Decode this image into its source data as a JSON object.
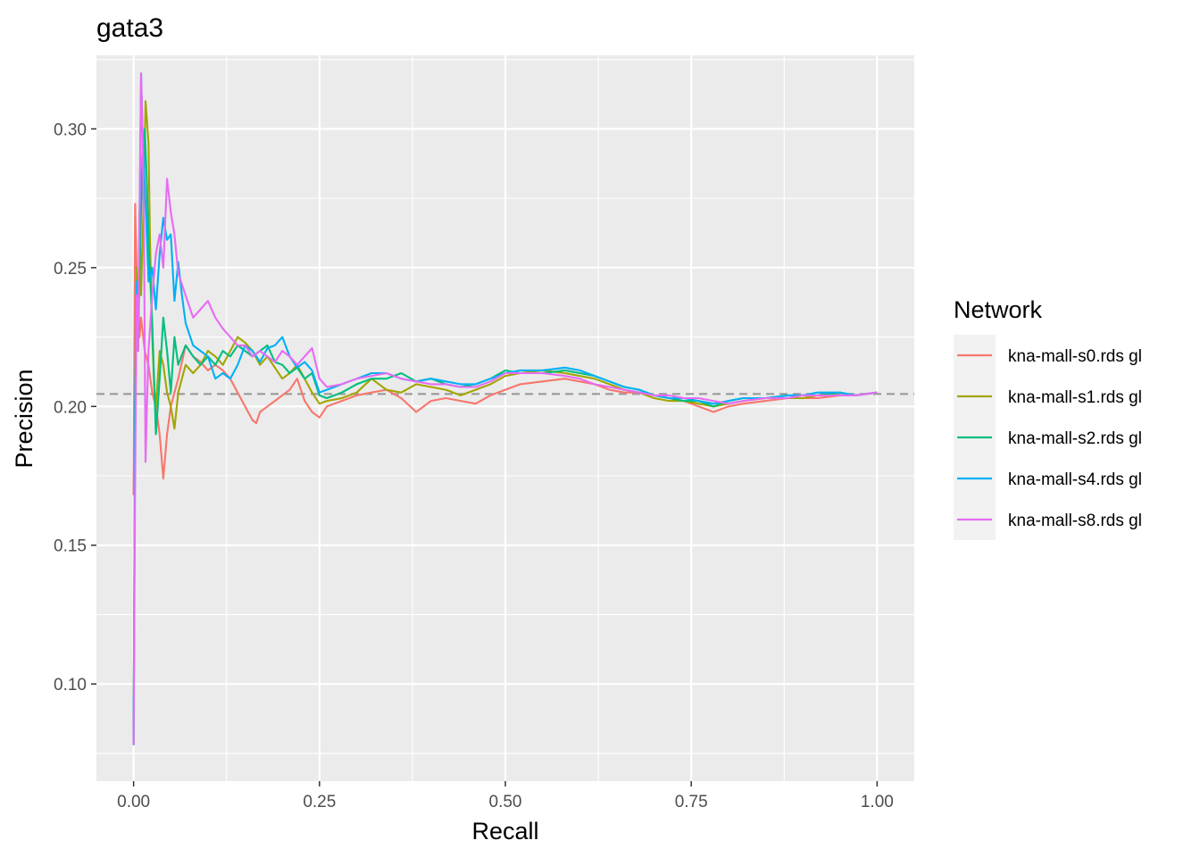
{
  "chart_data": {
    "type": "line",
    "title": "gata3",
    "xlabel": "Recall",
    "ylabel": "Precision",
    "xlim": [
      -0.05,
      1.05
    ],
    "ylim": [
      0.065,
      0.3265
    ],
    "x_ticks": [
      "0.00",
      "0.25",
      "0.50",
      "0.75",
      "1.00"
    ],
    "x_tick_values": [
      0,
      0.25,
      0.5,
      0.75,
      1.0
    ],
    "y_ticks": [
      "0.10",
      "0.15",
      "0.20",
      "0.25",
      "0.30"
    ],
    "y_tick_values": [
      0.1,
      0.15,
      0.2,
      0.25,
      0.3
    ],
    "baseline": 0.2045,
    "grid": true,
    "legend": {
      "title": "Network",
      "position": "right"
    },
    "series": [
      {
        "name": "kna-mall-s0.rds gl",
        "color": "#F8766D",
        "x": [
          0.0,
          0.002,
          0.004,
          0.006,
          0.008,
          0.01,
          0.015,
          0.02,
          0.025,
          0.03,
          0.035,
          0.04,
          0.045,
          0.05,
          0.055,
          0.06,
          0.07,
          0.08,
          0.09,
          0.1,
          0.11,
          0.12,
          0.13,
          0.14,
          0.15,
          0.16,
          0.165,
          0.17,
          0.18,
          0.19,
          0.2,
          0.21,
          0.22,
          0.23,
          0.24,
          0.25,
          0.26,
          0.28,
          0.3,
          0.32,
          0.34,
          0.36,
          0.38,
          0.4,
          0.42,
          0.44,
          0.46,
          0.48,
          0.5,
          0.52,
          0.55,
          0.58,
          0.6,
          0.62,
          0.64,
          0.66,
          0.68,
          0.7,
          0.72,
          0.74,
          0.76,
          0.78,
          0.8,
          0.82,
          0.85,
          0.88,
          0.9,
          0.92,
          0.95,
          0.97,
          1.0
        ],
        "y": [
          0.168,
          0.273,
          0.25,
          0.24,
          0.225,
          0.232,
          0.22,
          0.215,
          0.205,
          0.2,
          0.19,
          0.174,
          0.19,
          0.2,
          0.205,
          0.21,
          0.222,
          0.218,
          0.216,
          0.213,
          0.215,
          0.213,
          0.21,
          0.205,
          0.2,
          0.195,
          0.194,
          0.198,
          0.2,
          0.202,
          0.204,
          0.206,
          0.21,
          0.202,
          0.198,
          0.196,
          0.2,
          0.202,
          0.204,
          0.205,
          0.206,
          0.203,
          0.198,
          0.202,
          0.203,
          0.202,
          0.201,
          0.204,
          0.206,
          0.208,
          0.209,
          0.21,
          0.209,
          0.208,
          0.206,
          0.205,
          0.205,
          0.204,
          0.203,
          0.202,
          0.2,
          0.198,
          0.2,
          0.201,
          0.202,
          0.203,
          0.203,
          0.203,
          0.204,
          0.204,
          0.205
        ]
      },
      {
        "name": "kna-mall-s1.rds gl",
        "color": "#A3A500",
        "x": [
          0.0,
          0.002,
          0.004,
          0.006,
          0.008,
          0.01,
          0.012,
          0.014,
          0.016,
          0.018,
          0.02,
          0.022,
          0.025,
          0.028,
          0.03,
          0.035,
          0.04,
          0.045,
          0.05,
          0.055,
          0.06,
          0.07,
          0.08,
          0.09,
          0.1,
          0.11,
          0.12,
          0.13,
          0.14,
          0.15,
          0.16,
          0.17,
          0.18,
          0.19,
          0.2,
          0.21,
          0.22,
          0.23,
          0.24,
          0.25,
          0.26,
          0.28,
          0.3,
          0.32,
          0.34,
          0.36,
          0.38,
          0.4,
          0.42,
          0.44,
          0.46,
          0.48,
          0.5,
          0.52,
          0.55,
          0.58,
          0.6,
          0.62,
          0.64,
          0.66,
          0.68,
          0.7,
          0.72,
          0.74,
          0.76,
          0.78,
          0.8,
          0.82,
          0.85,
          0.88,
          0.9,
          0.92,
          0.95,
          0.97,
          1.0
        ],
        "y": [
          0.078,
          0.2,
          0.25,
          0.22,
          0.27,
          0.24,
          0.26,
          0.28,
          0.31,
          0.303,
          0.295,
          0.26,
          0.225,
          0.205,
          0.2,
          0.22,
          0.215,
          0.205,
          0.2,
          0.192,
          0.205,
          0.215,
          0.212,
          0.215,
          0.22,
          0.218,
          0.215,
          0.22,
          0.225,
          0.223,
          0.22,
          0.215,
          0.218,
          0.214,
          0.21,
          0.212,
          0.215,
          0.21,
          0.205,
          0.201,
          0.202,
          0.203,
          0.205,
          0.21,
          0.206,
          0.205,
          0.208,
          0.207,
          0.206,
          0.204,
          0.206,
          0.208,
          0.211,
          0.212,
          0.213,
          0.212,
          0.211,
          0.21,
          0.208,
          0.206,
          0.205,
          0.203,
          0.202,
          0.202,
          0.201,
          0.2,
          0.201,
          0.202,
          0.203,
          0.203,
          0.203,
          0.204,
          0.204,
          0.204,
          0.205
        ]
      },
      {
        "name": "kna-mall-s2.rds gl",
        "color": "#00BF7D",
        "x": [
          0.0,
          0.002,
          0.004,
          0.006,
          0.008,
          0.01,
          0.012,
          0.015,
          0.018,
          0.02,
          0.025,
          0.03,
          0.035,
          0.04,
          0.045,
          0.05,
          0.055,
          0.06,
          0.07,
          0.08,
          0.09,
          0.1,
          0.11,
          0.12,
          0.13,
          0.14,
          0.15,
          0.16,
          0.17,
          0.18,
          0.19,
          0.2,
          0.21,
          0.22,
          0.23,
          0.24,
          0.25,
          0.26,
          0.28,
          0.3,
          0.32,
          0.34,
          0.36,
          0.38,
          0.4,
          0.42,
          0.44,
          0.46,
          0.48,
          0.5,
          0.52,
          0.55,
          0.58,
          0.6,
          0.62,
          0.64,
          0.66,
          0.68,
          0.7,
          0.72,
          0.74,
          0.76,
          0.78,
          0.8,
          0.82,
          0.85,
          0.88,
          0.9,
          0.92,
          0.95,
          0.97,
          1.0
        ],
        "y": [
          0.078,
          0.19,
          0.24,
          0.22,
          0.25,
          0.27,
          0.29,
          0.3,
          0.28,
          0.26,
          0.23,
          0.19,
          0.21,
          0.232,
          0.22,
          0.205,
          0.225,
          0.215,
          0.222,
          0.218,
          0.215,
          0.218,
          0.215,
          0.22,
          0.218,
          0.222,
          0.22,
          0.218,
          0.22,
          0.222,
          0.216,
          0.215,
          0.212,
          0.214,
          0.21,
          0.212,
          0.204,
          0.203,
          0.205,
          0.208,
          0.21,
          0.21,
          0.212,
          0.209,
          0.21,
          0.208,
          0.207,
          0.208,
          0.21,
          0.213,
          0.212,
          0.212,
          0.213,
          0.212,
          0.211,
          0.209,
          0.207,
          0.206,
          0.204,
          0.203,
          0.202,
          0.202,
          0.2,
          0.202,
          0.203,
          0.203,
          0.204,
          0.204,
          0.204,
          0.205,
          0.204,
          0.205
        ]
      },
      {
        "name": "kna-mall-s4.rds gl",
        "color": "#00B0F6",
        "x": [
          0.0,
          0.002,
          0.004,
          0.006,
          0.008,
          0.01,
          0.012,
          0.015,
          0.018,
          0.02,
          0.025,
          0.03,
          0.035,
          0.04,
          0.045,
          0.05,
          0.055,
          0.06,
          0.065,
          0.07,
          0.08,
          0.09,
          0.1,
          0.11,
          0.12,
          0.13,
          0.14,
          0.15,
          0.16,
          0.17,
          0.18,
          0.19,
          0.2,
          0.21,
          0.22,
          0.23,
          0.24,
          0.25,
          0.26,
          0.28,
          0.3,
          0.32,
          0.34,
          0.36,
          0.38,
          0.4,
          0.42,
          0.44,
          0.46,
          0.48,
          0.5,
          0.52,
          0.55,
          0.58,
          0.6,
          0.62,
          0.64,
          0.66,
          0.68,
          0.7,
          0.72,
          0.74,
          0.76,
          0.78,
          0.8,
          0.82,
          0.85,
          0.88,
          0.9,
          0.92,
          0.95,
          0.97,
          1.0
        ],
        "y": [
          0.078,
          0.2,
          0.245,
          0.23,
          0.26,
          0.32,
          0.3,
          0.28,
          0.26,
          0.245,
          0.25,
          0.235,
          0.255,
          0.268,
          0.26,
          0.262,
          0.238,
          0.252,
          0.24,
          0.23,
          0.222,
          0.22,
          0.218,
          0.21,
          0.212,
          0.21,
          0.215,
          0.222,
          0.22,
          0.216,
          0.221,
          0.222,
          0.225,
          0.218,
          0.214,
          0.216,
          0.213,
          0.205,
          0.206,
          0.208,
          0.21,
          0.212,
          0.212,
          0.21,
          0.209,
          0.21,
          0.209,
          0.208,
          0.208,
          0.21,
          0.212,
          0.213,
          0.213,
          0.214,
          0.213,
          0.211,
          0.209,
          0.207,
          0.206,
          0.204,
          0.203,
          0.203,
          0.202,
          0.201,
          0.202,
          0.203,
          0.203,
          0.204,
          0.204,
          0.205,
          0.205,
          0.204,
          0.205
        ]
      },
      {
        "name": "kna-mall-s8.rds gl",
        "color": "#E76BF3",
        "x": [
          0.0,
          0.002,
          0.004,
          0.006,
          0.008,
          0.01,
          0.012,
          0.014,
          0.016,
          0.018,
          0.02,
          0.025,
          0.03,
          0.035,
          0.04,
          0.045,
          0.05,
          0.055,
          0.06,
          0.07,
          0.08,
          0.09,
          0.1,
          0.11,
          0.12,
          0.13,
          0.14,
          0.15,
          0.16,
          0.17,
          0.18,
          0.19,
          0.2,
          0.21,
          0.22,
          0.23,
          0.24,
          0.25,
          0.26,
          0.28,
          0.3,
          0.32,
          0.34,
          0.36,
          0.38,
          0.4,
          0.42,
          0.44,
          0.46,
          0.48,
          0.5,
          0.52,
          0.55,
          0.58,
          0.6,
          0.62,
          0.64,
          0.66,
          0.68,
          0.7,
          0.72,
          0.74,
          0.76,
          0.78,
          0.8,
          0.82,
          0.85,
          0.88,
          0.9,
          0.92,
          0.95,
          0.97,
          1.0
        ],
        "y": [
          0.078,
          0.17,
          0.24,
          0.22,
          0.27,
          0.32,
          0.3,
          0.26,
          0.18,
          0.2,
          0.22,
          0.24,
          0.255,
          0.262,
          0.25,
          0.282,
          0.27,
          0.262,
          0.248,
          0.24,
          0.232,
          0.235,
          0.238,
          0.232,
          0.228,
          0.225,
          0.222,
          0.222,
          0.218,
          0.22,
          0.218,
          0.216,
          0.22,
          0.218,
          0.215,
          0.218,
          0.221,
          0.21,
          0.207,
          0.208,
          0.21,
          0.211,
          0.212,
          0.21,
          0.209,
          0.208,
          0.208,
          0.207,
          0.207,
          0.209,
          0.212,
          0.212,
          0.212,
          0.211,
          0.21,
          0.208,
          0.207,
          0.206,
          0.205,
          0.204,
          0.204,
          0.203,
          0.203,
          0.202,
          0.201,
          0.202,
          0.203,
          0.203,
          0.204,
          0.204,
          0.204,
          0.204,
          0.205
        ]
      }
    ]
  }
}
